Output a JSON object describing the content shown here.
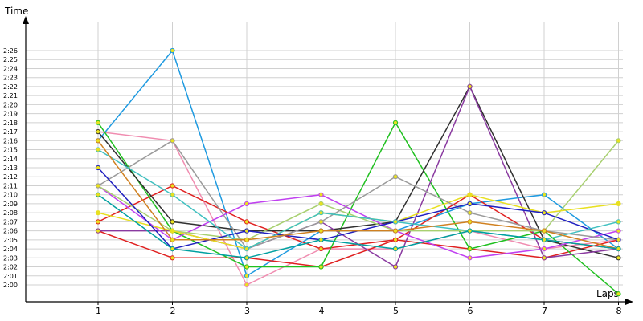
{
  "chart_data": {
    "type": "line",
    "xlabel": "Laps",
    "ylabel": "Time",
    "x": [
      1,
      2,
      3,
      4,
      5,
      6,
      7,
      8
    ],
    "y_ticks": [
      "2:00",
      "2:01",
      "2:02",
      "2:03",
      "2:04",
      "2:05",
      "2:06",
      "2:07",
      "2:08",
      "2:09",
      "2:10",
      "2:11",
      "2:12",
      "2:13",
      "2:14",
      "2:15",
      "2:16",
      "2:17",
      "2:18",
      "2:19",
      "2:20",
      "2:21",
      "2:22",
      "2:23",
      "2:24",
      "2:25",
      "2:26"
    ],
    "ylim_seconds": [
      119,
      129
    ],
    "grid": true,
    "series": [
      {
        "color": "#1e9ae0",
        "values": [
          136,
          146,
          121,
          126,
          126,
          129,
          130,
          124
        ]
      },
      {
        "color": "#f08cb0",
        "values": [
          137,
          136,
          120,
          124,
          124,
          126,
          124,
          125
        ]
      },
      {
        "color": "#e02020",
        "values": [
          127,
          131,
          127,
          124,
          125,
          130,
          125,
          124
        ]
      },
      {
        "color": "#e02020",
        "values": [
          126,
          123,
          123,
          122,
          125,
          124,
          123,
          125
        ]
      },
      {
        "color": "#20c020",
        "values": [
          138,
          126,
          122,
          122,
          138,
          124,
          126,
          119
        ]
      },
      {
        "color": "#303030",
        "values": [
          137,
          127,
          126,
          126,
          127,
          142,
          125,
          123
        ]
      },
      {
        "color": "#8a3aa0",
        "values": [
          126,
          126,
          124,
          127,
          122,
          142,
          123,
          124
        ]
      },
      {
        "color": "#c040f0",
        "values": [
          131,
          125,
          129,
          130,
          126,
          123,
          124,
          126
        ]
      },
      {
        "color": "#a8d070",
        "values": [
          131,
          126,
          125,
          129,
          126,
          126,
          126,
          136
        ]
      },
      {
        "color": "#e8e020",
        "values": [
          128,
          126,
          124,
          128,
          127,
          130,
          128,
          129
        ]
      },
      {
        "color": "#9a9a9a",
        "values": [
          131,
          136,
          124,
          127,
          132,
          128,
          126,
          125
        ]
      },
      {
        "color": "#2020c0",
        "values": [
          133,
          124,
          126,
          125,
          127,
          129,
          128,
          125
        ]
      },
      {
        "color": "#40c0c0",
        "values": [
          135,
          130,
          124,
          128,
          127,
          126,
          125,
          127
        ]
      },
      {
        "color": "#d08020",
        "values": [
          136,
          125,
          125,
          126,
          126,
          127,
          126,
          124
        ]
      },
      {
        "color": "#00a0a0",
        "values": [
          130,
          124,
          123,
          125,
          124,
          126,
          125,
          124
        ]
      }
    ]
  }
}
